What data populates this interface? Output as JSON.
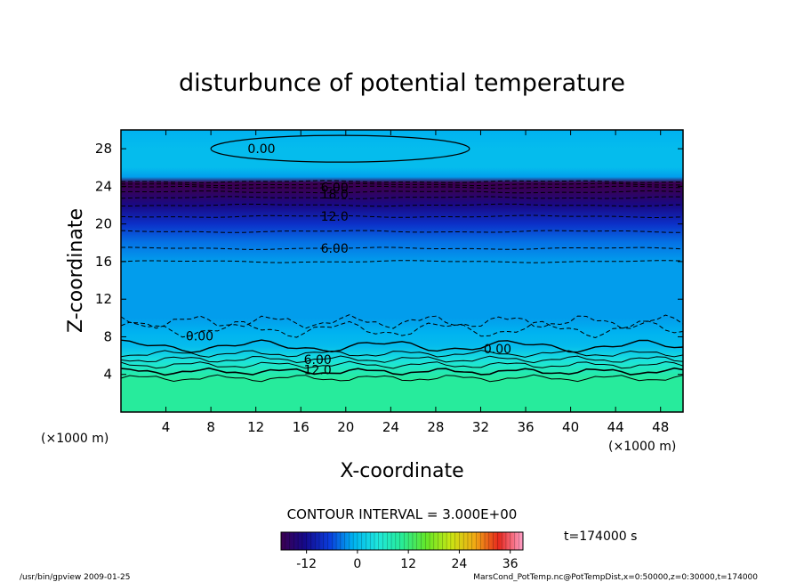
{
  "chart_data": {
    "type": "heatmap",
    "title": "disturbunce of potential temperature",
    "xlabel": "X-coordinate",
    "ylabel": "Z-coordinate",
    "x_unit_left": "(×1000 m)",
    "x_unit_right": "(×1000 m)",
    "xlim": [
      0,
      50
    ],
    "ylim": [
      0,
      30
    ],
    "x_ticks": [
      4,
      8,
      12,
      16,
      20,
      24,
      28,
      32,
      36,
      40,
      44,
      48
    ],
    "y_ticks": [
      4,
      8,
      12,
      16,
      20,
      24,
      28
    ],
    "contour_interval_label": "CONTOUR INTERVAL = 3.000E+00",
    "time_label": "t=174000 s",
    "contour_labels": [
      {
        "text": "0.00",
        "x": 12.5,
        "y": 28.0
      },
      {
        "text": "6.00",
        "x": 19.0,
        "y": 23.9
      },
      {
        "text": "18.0",
        "x": 19.0,
        "y": 23.2
      },
      {
        "text": "12.0",
        "x": 19.0,
        "y": 20.8
      },
      {
        "text": "6.00",
        "x": 19.0,
        "y": 17.4
      },
      {
        "text": "0.00",
        "x": 7.0,
        "y": 8.1
      },
      {
        "text": "0.00",
        "x": 33.5,
        "y": 6.7
      },
      {
        "text": "6.00",
        "x": 17.5,
        "y": 5.6
      },
      {
        "text": "12.0",
        "x": 17.5,
        "y": 4.5
      }
    ],
    "colorbar": {
      "min": -18,
      "max": 39,
      "ticks": [
        -12,
        0,
        12,
        24,
        36
      ]
    },
    "vertical_profile": [
      {
        "z": 0.0,
        "value": 10
      },
      {
        "z": 3.5,
        "value": 10
      },
      {
        "z": 4.3,
        "value": 8
      },
      {
        "z": 5.0,
        "value": 6
      },
      {
        "z": 5.6,
        "value": 4
      },
      {
        "z": 6.3,
        "value": 2
      },
      {
        "z": 7.0,
        "value": 0
      },
      {
        "z": 8.5,
        "value": -1
      },
      {
        "z": 10.0,
        "value": -2
      },
      {
        "z": 16.0,
        "value": -2
      },
      {
        "z": 18.0,
        "value": -4
      },
      {
        "z": 20.0,
        "value": -8
      },
      {
        "z": 22.0,
        "value": -13
      },
      {
        "z": 23.5,
        "value": -17
      },
      {
        "z": 24.4,
        "value": -18
      },
      {
        "z": 25.0,
        "value": -2
      },
      {
        "z": 26.0,
        "value": 0
      },
      {
        "z": 28.0,
        "value": 0
      },
      {
        "z": 30.0,
        "value": -1
      }
    ],
    "footer_left": "/usr/bin/gpview   2009-01-25",
    "footer_right": "MarsCond_PotTemp.nc@PotTempDist,x=0:50000,z=0:30000,t=174000"
  }
}
